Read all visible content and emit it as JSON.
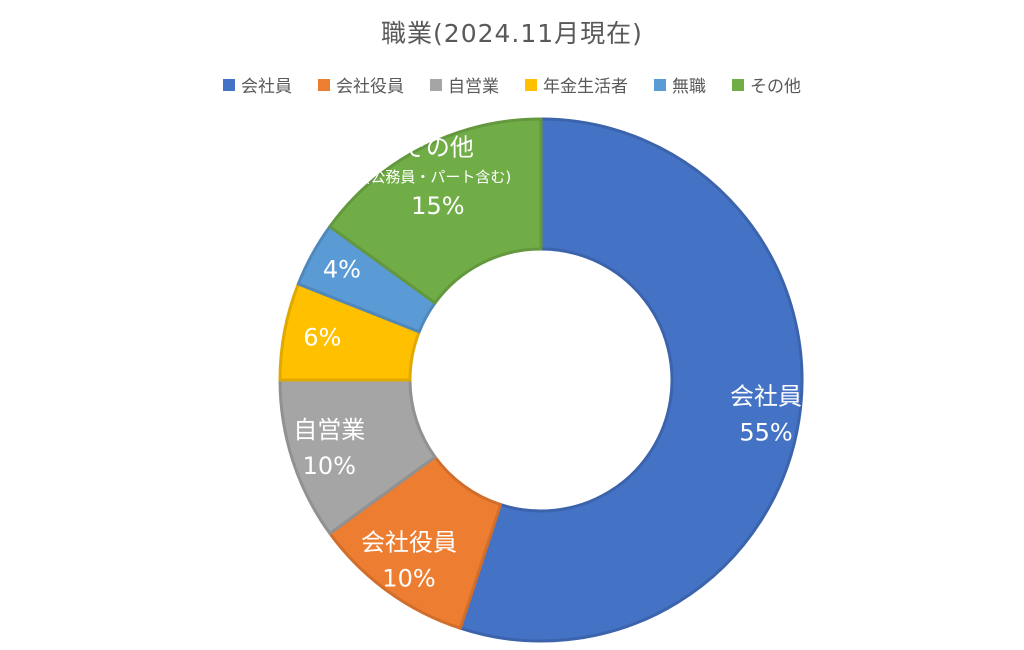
{
  "chart_data": {
    "type": "pie",
    "title": "職業(2024.11月現在)",
    "legend_position": "top",
    "hole": "donut",
    "slices": [
      {
        "name": "会社員",
        "value": 55,
        "label": "会社員",
        "pct_label": "55%",
        "sub_label": "",
        "color": "#4472C4"
      },
      {
        "name": "会社役員",
        "value": 10,
        "label": "会社役員",
        "pct_label": "10%",
        "sub_label": "",
        "color": "#ED7D31"
      },
      {
        "name": "自営業",
        "value": 10,
        "label": "自営業",
        "pct_label": "10%",
        "sub_label": "",
        "color": "#A5A5A5"
      },
      {
        "name": "年金生活者",
        "value": 6,
        "label": "",
        "pct_label": "6%",
        "sub_label": "",
        "color": "#FFC000"
      },
      {
        "name": "無職",
        "value": 4,
        "label": "",
        "pct_label": "4%",
        "sub_label": "",
        "color": "#5B9BD5"
      },
      {
        "name": "その他",
        "value": 15,
        "label": "その他",
        "pct_label": "15%",
        "sub_label": "(公務員・パート含む)",
        "color": "#70AD47"
      }
    ]
  }
}
